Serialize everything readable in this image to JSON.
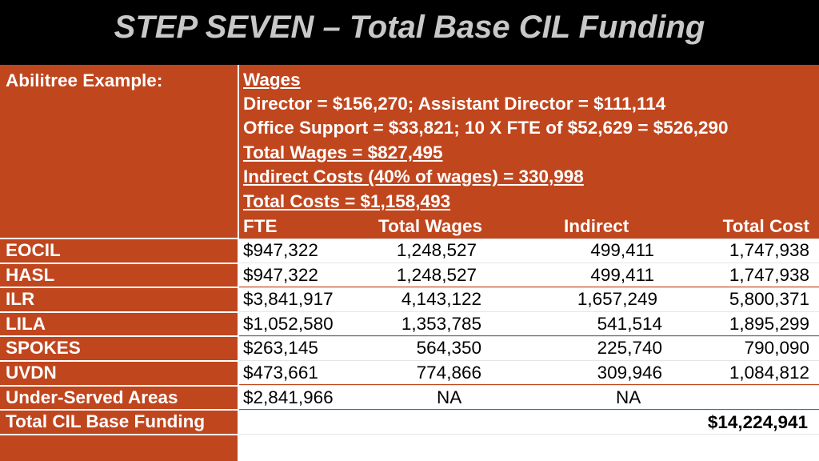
{
  "title": "STEP SEVEN – Total Base CIL Funding",
  "header_label": "Abilitree Example:",
  "wages": {
    "heading": "Wages",
    "line1": "Director = $156,270; Assistant Director = $111,114",
    "line2": "Office Support = $33,821; 10 X FTE of $52,629 = $526,290",
    "line3": "Total Wages = $827,495",
    "line4": "Indirect Costs (40% of wages) = 330,998",
    "line5": "Total Costs = $1,158,493"
  },
  "columns": {
    "fte": "FTE",
    "total_wages": "Total Wages",
    "indirect": "Indirect",
    "total_cost": "Total Cost"
  },
  "rows": [
    {
      "name": "EOCIL",
      "fte": "$947,322",
      "total_wages": "1,248,527",
      "indirect": "499,411",
      "total_cost": "1,747,938"
    },
    {
      "name": "HASL",
      "fte": "$947,322",
      "total_wages": "1,248,527",
      "indirect": "499,411",
      "total_cost": "1,747,938"
    },
    {
      "name": "ILR",
      "fte": "$3,841,917",
      "total_wages": "4,143,122",
      "indirect": "1,657,249",
      "total_cost": "5,800,371"
    },
    {
      "name": "LILA",
      "fte": "$1,052,580",
      "total_wages": "1,353,785",
      "indirect": "541,514",
      "total_cost": "1,895,299"
    },
    {
      "name": "SPOKES",
      "fte": "$263,145",
      "total_wages": "564,350",
      "indirect": "225,740",
      "total_cost": "790,090"
    },
    {
      "name": "UVDN",
      "fte": "$473,661",
      "total_wages": "774,866",
      "indirect": "309,946",
      "total_cost": "1,084,812"
    },
    {
      "name": "Under-Served Areas",
      "fte": "$2,841,966",
      "total_wages": "NA",
      "indirect": "NA",
      "total_cost": ""
    }
  ],
  "total": {
    "label": "Total CIL Base Funding",
    "value": "$14,224,941"
  }
}
